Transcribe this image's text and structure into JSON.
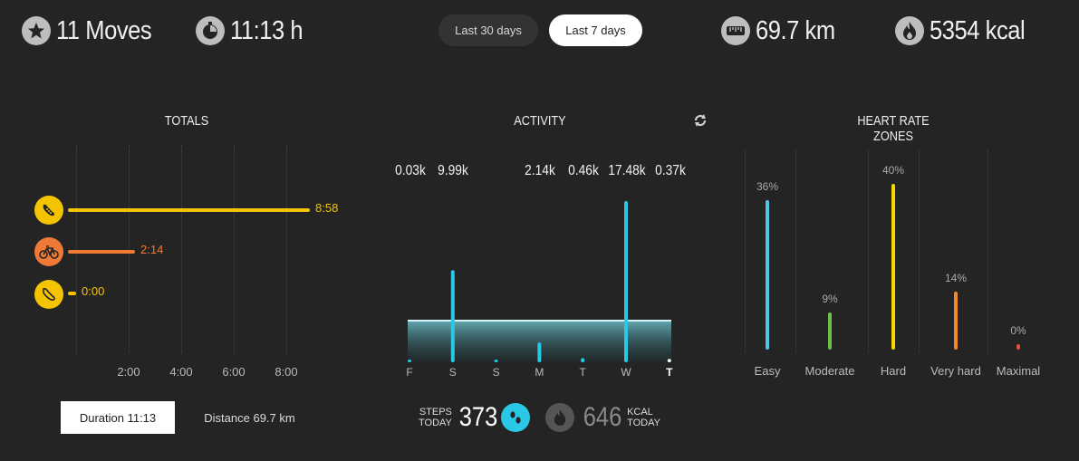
{
  "header": {
    "moves": "11 Moves",
    "duration": "11:13 h",
    "range_30": "Last 30 days",
    "range_7": "Last 7 days",
    "distance": "69.7 km",
    "calories": "5354 kcal"
  },
  "totals": {
    "title": "TOTALS",
    "ticks": [
      "2:00",
      "4:00",
      "6:00",
      "8:00"
    ],
    "items": [
      {
        "name": "running",
        "value": "8:58",
        "color": "#f5c400"
      },
      {
        "name": "cycling",
        "value": "2:14",
        "color": "#ef7a35"
      },
      {
        "name": "walking",
        "value": "0:00",
        "color": "#f5c400"
      }
    ],
    "duration_chip": "Duration 11:13",
    "distance_chip": "Distance 69.7 km"
  },
  "activity": {
    "title": "ACTIVITY",
    "days": [
      "F",
      "S",
      "S",
      "M",
      "T",
      "W",
      "T"
    ],
    "labels": [
      "0.03k",
      "9.99k",
      "2.14k",
      "0.46k",
      "17.48k",
      "0.37k"
    ],
    "color": "#29c8e6",
    "steps_label_1": "STEPS",
    "steps_label_2": "TODAY",
    "steps_today": "373",
    "kcal_today": "646",
    "kcal_label_1": "KCAL",
    "kcal_label_2": "TODAY"
  },
  "heart_rate": {
    "title": "HEART RATE ZONES",
    "zones": [
      {
        "name": "Easy",
        "pct": "36%",
        "color": "#4fc3e8"
      },
      {
        "name": "Moderate",
        "pct": "9%",
        "color": "#6cc04a"
      },
      {
        "name": "Hard",
        "pct": "40%",
        "color": "#f5d800"
      },
      {
        "name": "Very hard",
        "pct": "14%",
        "color": "#ef8a2c"
      },
      {
        "name": "Maximal",
        "pct": "0%",
        "color": "#e84c3d"
      }
    ]
  }
}
